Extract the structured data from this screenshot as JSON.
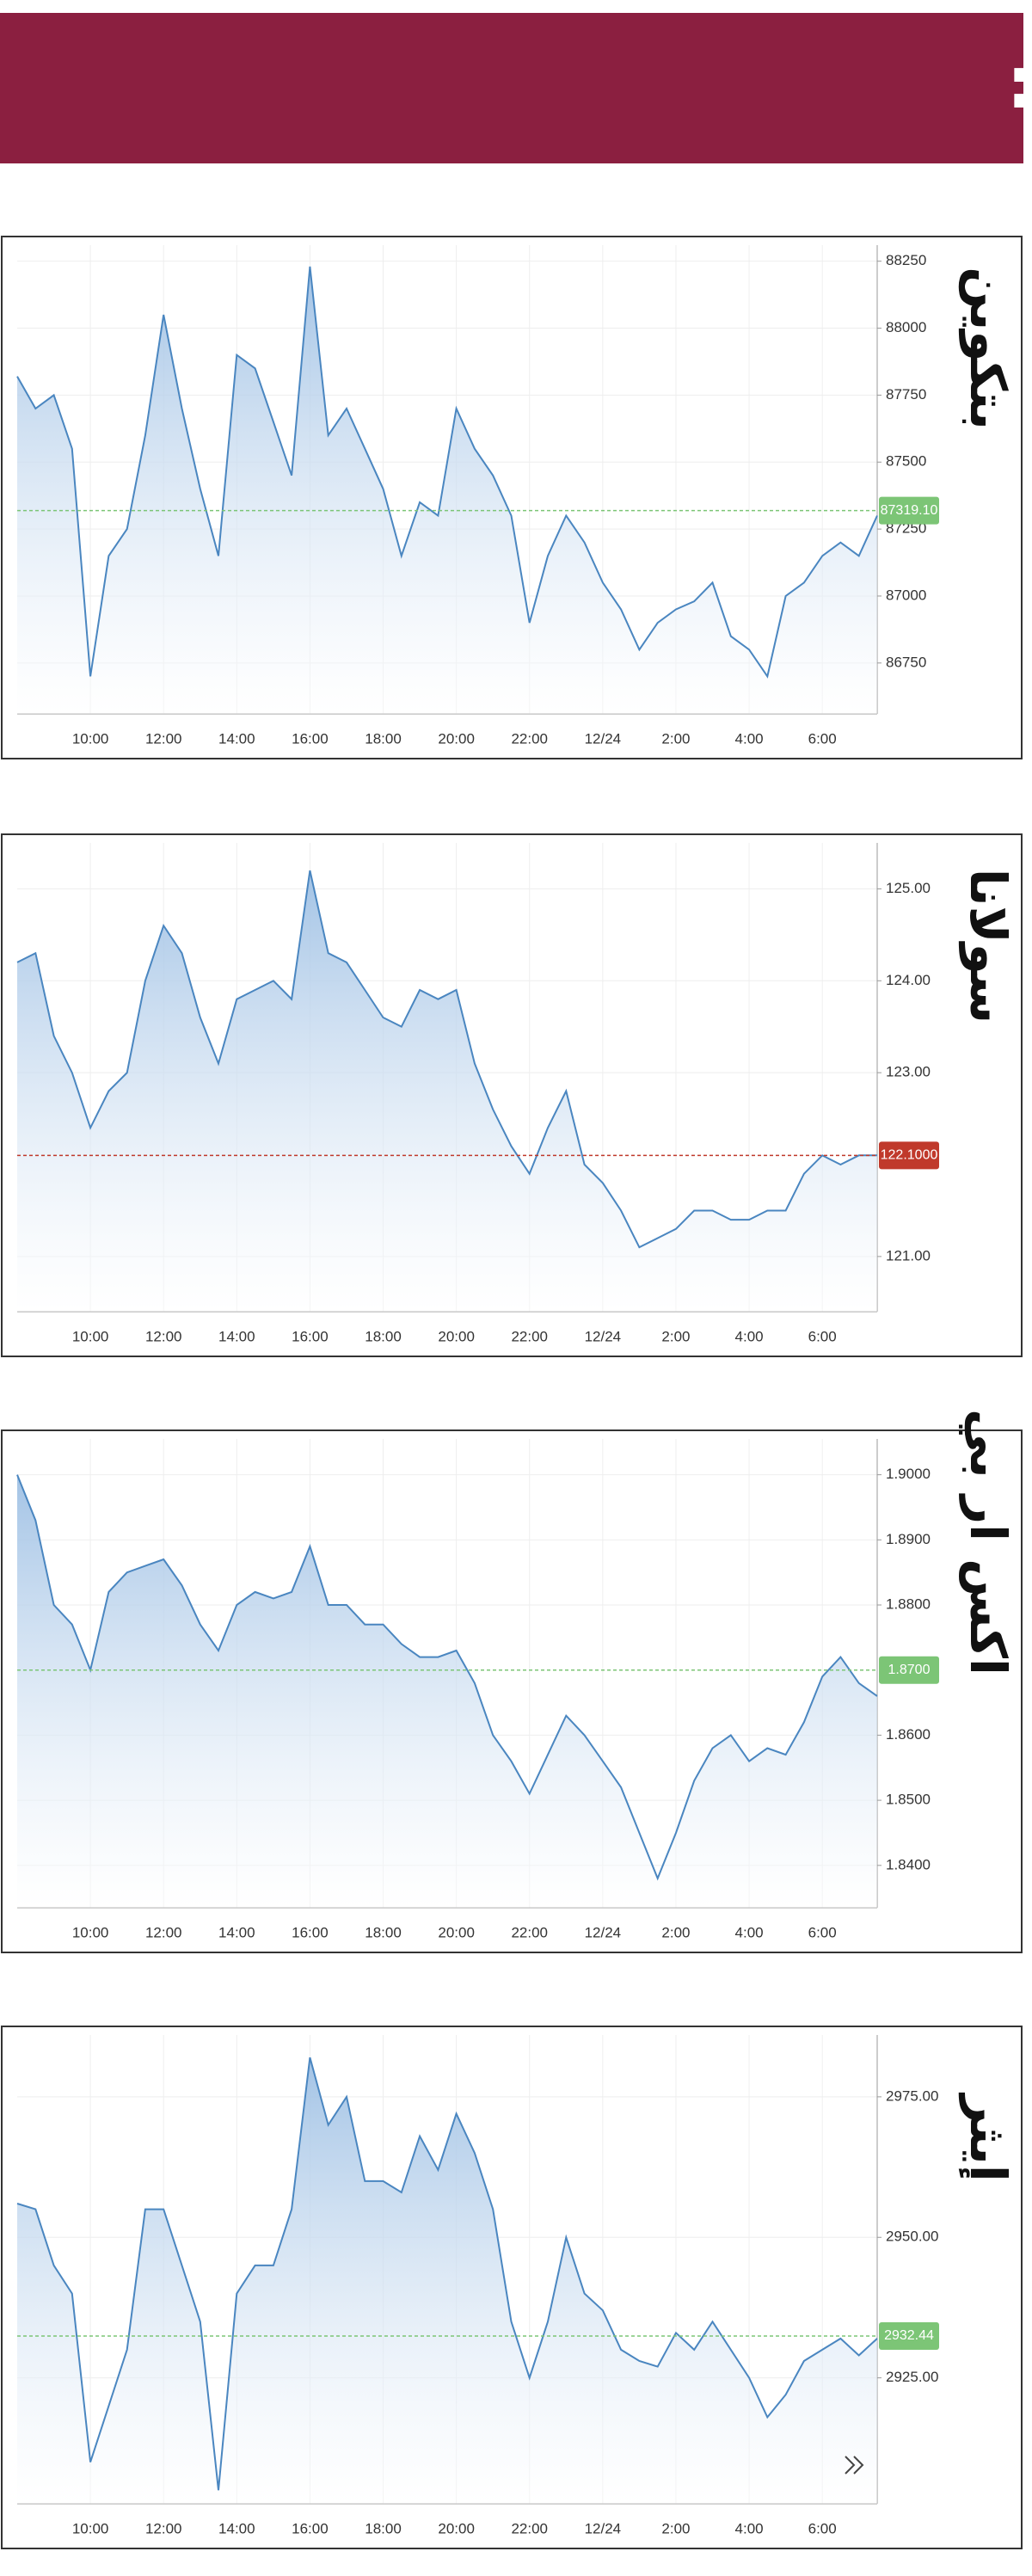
{
  "header": {
    "title": "تحركات العملات الرقمية:"
  },
  "chart_data": [
    {
      "type": "line",
      "title": "بتكوين",
      "color": "#4a86c0",
      "categories": [
        null,
        null,
        null,
        null,
        "10:00",
        null,
        null,
        null,
        "12:00",
        null,
        null,
        null,
        "14:00",
        null,
        null,
        null,
        "16:00",
        null,
        null,
        null,
        "18:00",
        null,
        null,
        null,
        "20:00",
        null,
        null,
        null,
        "22:00",
        null,
        null,
        null,
        "12/24",
        null,
        null,
        null,
        "2:00",
        null,
        null,
        null,
        "4:00",
        null,
        null,
        null,
        "6:00",
        null,
        null,
        null
      ],
      "values": [
        87820,
        87700,
        87750,
        87550,
        86700,
        87150,
        87250,
        87600,
        88050,
        87700,
        87400,
        87150,
        87900,
        87850,
        87650,
        87450,
        88230,
        87600,
        87700,
        87550,
        87400,
        87150,
        87350,
        87300,
        87700,
        87550,
        87450,
        87300,
        86900,
        87150,
        87300,
        87200,
        87050,
        86950,
        86800,
        86900,
        86950,
        86980,
        87050,
        86850,
        86800,
        86700,
        87000,
        87050,
        87150,
        87200,
        87150,
        87300
      ],
      "ylim": [
        86560,
        88310
      ],
      "yticks": [
        86750,
        87000,
        87250,
        87500,
        87750,
        88000,
        88250
      ],
      "price_label": {
        "value": 87319.1,
        "label": "87319.10",
        "color": "#7cc576"
      }
    },
    {
      "type": "line",
      "title": "سولانا",
      "color": "#4a86c0",
      "categories": [
        null,
        null,
        null,
        null,
        "10:00",
        null,
        null,
        null,
        "12:00",
        null,
        null,
        null,
        "14:00",
        null,
        null,
        null,
        "16:00",
        null,
        null,
        null,
        "18:00",
        null,
        null,
        null,
        "20:00",
        null,
        null,
        null,
        "22:00",
        null,
        null,
        null,
        "12/24",
        null,
        null,
        null,
        "2:00",
        null,
        null,
        null,
        "4:00",
        null,
        null,
        null,
        "6:00",
        null,
        null,
        null
      ],
      "values": [
        124.2,
        124.3,
        123.4,
        123.0,
        122.4,
        122.8,
        123.0,
        124.0,
        124.6,
        124.3,
        123.6,
        123.1,
        123.8,
        123.9,
        124.0,
        123.8,
        125.2,
        124.3,
        124.2,
        123.9,
        123.6,
        123.5,
        123.9,
        123.8,
        123.9,
        123.1,
        122.6,
        122.2,
        121.9,
        122.4,
        122.8,
        122.0,
        121.8,
        121.5,
        121.1,
        121.2,
        121.3,
        121.5,
        121.5,
        121.4,
        121.4,
        121.5,
        121.5,
        121.9,
        122.1,
        122.0,
        122.1,
        122.1
      ],
      "ylim": [
        120.4,
        125.5
      ],
      "yticks": [
        {
          "value": 121,
          "label": "121.00"
        },
        {
          "value": 123,
          "label": "123.00"
        },
        {
          "value": 124,
          "label": "124.00"
        },
        {
          "value": 125,
          "label": "125.00"
        }
      ],
      "price_label": {
        "value": 122.1,
        "label": "122.1000",
        "color": "#c0392b"
      }
    },
    {
      "type": "line",
      "title": "اكس ار بي",
      "color": "#4a86c0",
      "categories": [
        null,
        null,
        null,
        null,
        "10:00",
        null,
        null,
        null,
        "12:00",
        null,
        null,
        null,
        "14:00",
        null,
        null,
        null,
        "16:00",
        null,
        null,
        null,
        "18:00",
        null,
        null,
        null,
        "20:00",
        null,
        null,
        null,
        "22:00",
        null,
        null,
        null,
        "12/24",
        null,
        null,
        null,
        "2:00",
        null,
        null,
        null,
        "4:00",
        null,
        null,
        null,
        "6:00",
        null,
        null,
        null
      ],
      "values": [
        1.9,
        1.893,
        1.88,
        1.877,
        1.87,
        1.882,
        1.885,
        1.886,
        1.887,
        1.883,
        1.877,
        1.873,
        1.88,
        1.882,
        1.881,
        1.882,
        1.889,
        1.88,
        1.88,
        1.877,
        1.877,
        1.874,
        1.872,
        1.872,
        1.873,
        1.868,
        1.86,
        1.856,
        1.851,
        1.857,
        1.863,
        1.86,
        1.856,
        1.852,
        1.845,
        1.838,
        1.845,
        1.853,
        1.858,
        1.86,
        1.856,
        1.858,
        1.857,
        1.862,
        1.869,
        1.872,
        1.868,
        1.866
      ],
      "ylim": [
        1.8335,
        1.9055
      ],
      "yticks": [
        {
          "value": 1.84,
          "label": "1.8400"
        },
        {
          "value": 1.85,
          "label": "1.8500"
        },
        {
          "value": 1.86,
          "label": "1.8600"
        },
        {
          "value": 1.88,
          "label": "1.8800"
        },
        {
          "value": 1.89,
          "label": "1.8900"
        },
        {
          "value": 1.9,
          "label": "1.9000"
        }
      ],
      "price_label": {
        "value": 1.87,
        "label": "1.8700",
        "color": "#7cc576"
      }
    },
    {
      "type": "line",
      "title": "إيثر",
      "color": "#4a86c0",
      "categories": [
        null,
        null,
        null,
        null,
        "10:00",
        null,
        null,
        null,
        "12:00",
        null,
        null,
        null,
        "14:00",
        null,
        null,
        null,
        "16:00",
        null,
        null,
        null,
        "18:00",
        null,
        null,
        null,
        "20:00",
        null,
        null,
        null,
        "22:00",
        null,
        null,
        null,
        "12/24",
        null,
        null,
        null,
        "2:00",
        null,
        null,
        null,
        "4:00",
        null,
        null,
        null,
        "6:00",
        null,
        null,
        null
      ],
      "values": [
        2956,
        2955,
        2945,
        2940,
        2910,
        2920,
        2930,
        2955,
        2955,
        2945,
        2935,
        2905,
        2940,
        2945,
        2945,
        2955,
        2982,
        2970,
        2975,
        2960,
        2960,
        2958,
        2968,
        2962,
        2972,
        2965,
        2955,
        2935,
        2925,
        2935,
        2950,
        2940,
        2937,
        2930,
        2928,
        2927,
        2933,
        2930,
        2935,
        2930,
        2925,
        2918,
        2922,
        2928,
        2930,
        2932,
        2929,
        2932
      ],
      "ylim": [
        2902.6,
        2986
      ],
      "yticks": [
        {
          "value": 2925,
          "label": "2925.00"
        },
        {
          "value": 2950,
          "label": "2950.00"
        },
        {
          "value": 2975,
          "label": "2975.00"
        }
      ],
      "price_label": {
        "value": 2932.44,
        "label": "2932.44",
        "color": "#7cc576"
      }
    }
  ]
}
